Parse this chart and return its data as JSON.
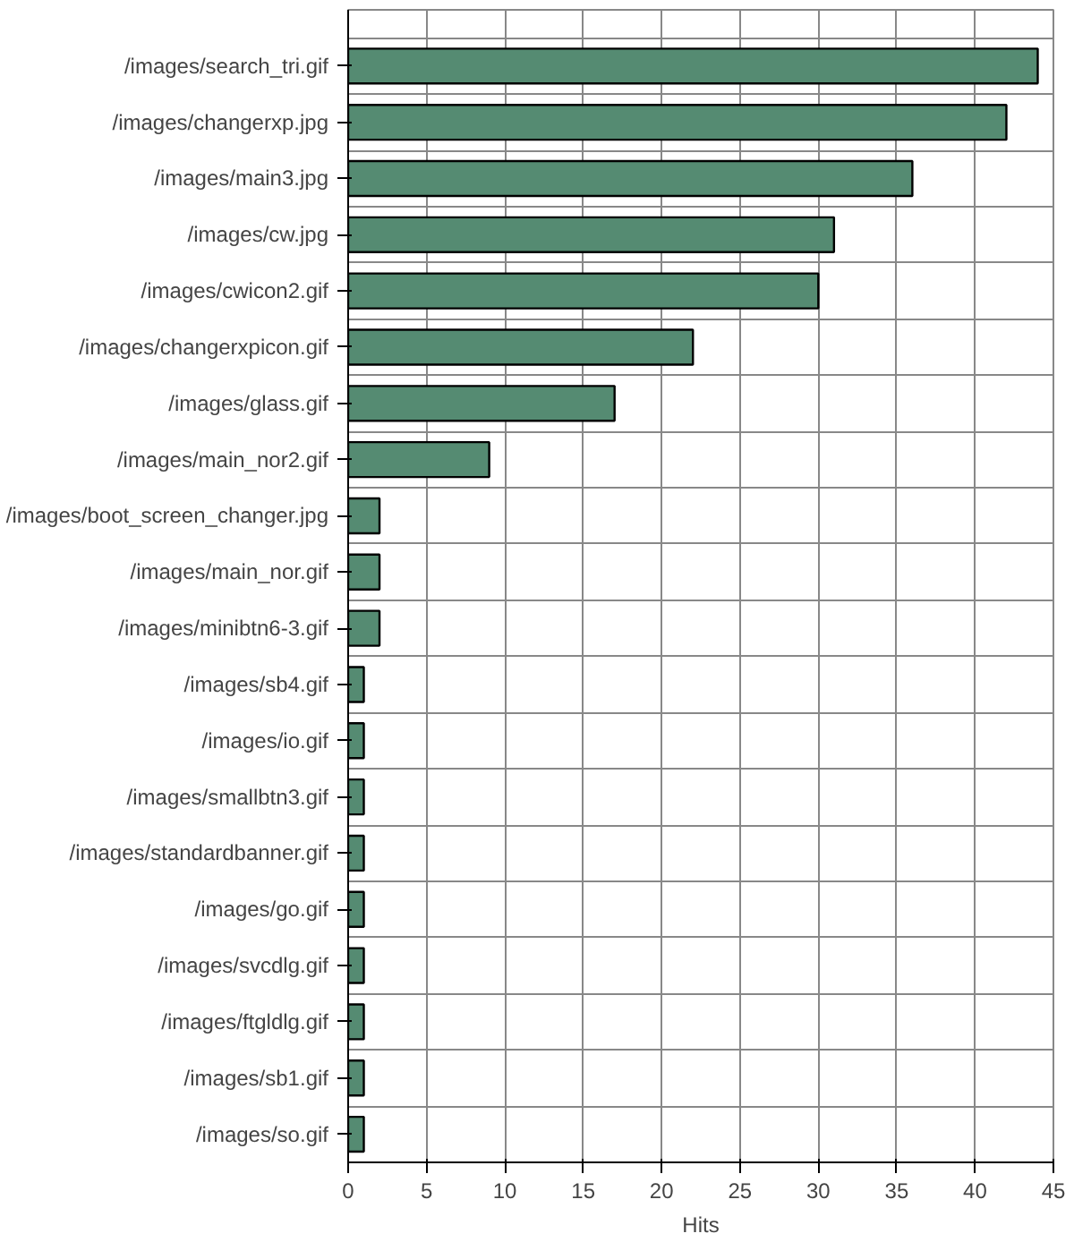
{
  "chart_data": {
    "type": "bar",
    "orientation": "horizontal",
    "xlabel": "Hits",
    "categories": [
      "/images/search_tri.gif",
      "/images/changerxp.jpg",
      "/images/main3.jpg",
      "/images/cw.jpg",
      "/images/cwicon2.gif",
      "/images/changerxpicon.gif",
      "/images/glass.gif",
      "/images/main_nor2.gif",
      "/images/boot_screen_changer.jpg",
      "/images/main_nor.gif",
      "/images/minibtn6-3.gif",
      "/images/sb4.gif",
      "/images/io.gif",
      "/images/smallbtn3.gif",
      "/images/standardbanner.gif",
      "/images/go.gif",
      "/images/svcdlg.gif",
      "/images/ftgldlg.gif",
      "/images/sb1.gif",
      "/images/so.gif"
    ],
    "values": [
      44,
      42,
      36,
      31,
      30,
      22,
      17,
      9,
      2,
      2,
      2,
      1,
      1,
      1,
      1,
      1,
      1,
      1,
      1,
      1
    ],
    "color": "#558b72",
    "xlim": [
      0,
      45
    ],
    "xticks": [
      0,
      5,
      10,
      15,
      20,
      25,
      30,
      35,
      40,
      45
    ],
    "grid": true
  }
}
